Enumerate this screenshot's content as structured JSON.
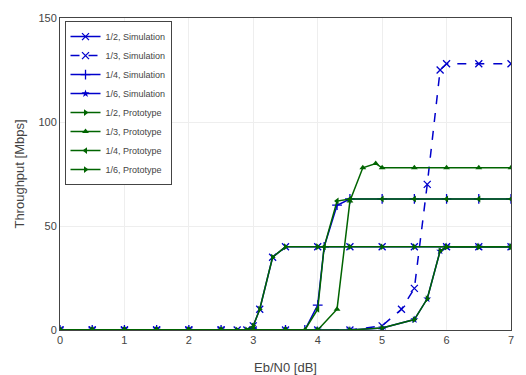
{
  "chart_data": {
    "type": "line",
    "xlabel": "Eb/N0 [dB]",
    "ylabel": "Throughput [Mbps]",
    "xlim": [
      0,
      7
    ],
    "ylim": [
      0,
      150
    ],
    "xticks": [
      0,
      1,
      2,
      3,
      4,
      5,
      6,
      7
    ],
    "yticks": [
      0,
      50,
      100,
      150
    ],
    "grid": true,
    "legend": "upper left",
    "series": [
      {
        "name": "1/2, Simulation",
        "color": "#0000cc",
        "line_style": "solid",
        "marker": "x",
        "x": [
          0,
          0.5,
          1.0,
          1.5,
          2.0,
          2.5,
          2.75,
          2.9,
          3.0,
          3.1,
          3.3,
          3.5,
          4.0,
          4.5,
          5.0,
          5.5,
          6.0,
          6.5,
          7.0
        ],
        "values": [
          0,
          0,
          0,
          0,
          0,
          0,
          0,
          0,
          2,
          10,
          35,
          40,
          40,
          40,
          40,
          40,
          40,
          40,
          40
        ]
      },
      {
        "name": "1/3, Simulation",
        "color": "#0000cc",
        "line_style": "dashed",
        "marker": "x",
        "x": [
          0,
          0.5,
          1.0,
          1.5,
          2.0,
          2.5,
          3.0,
          3.5,
          4.0,
          4.5,
          5.0,
          5.3,
          5.5,
          5.7,
          5.9,
          6.0,
          6.5,
          7.0
        ],
        "values": [
          0,
          0,
          0,
          0,
          0,
          0,
          0,
          0,
          0,
          0,
          2,
          10,
          20,
          70,
          125,
          128,
          128,
          128
        ]
      },
      {
        "name": "1/4, Simulation",
        "color": "#0000cc",
        "line_style": "solid",
        "marker": "plus",
        "x": [
          0,
          0.5,
          1.0,
          1.5,
          2.0,
          2.5,
          3.0,
          3.5,
          3.8,
          4.0,
          4.1,
          4.3,
          4.5,
          5.0,
          5.5,
          6.0,
          6.5,
          7.0
        ],
        "values": [
          0,
          0,
          0,
          0,
          0,
          0,
          0,
          0,
          0,
          12,
          40,
          60,
          63,
          63,
          63,
          63,
          63,
          63
        ]
      },
      {
        "name": "1/6, Simulation",
        "color": "#0000cc",
        "line_style": "solid",
        "marker": "star",
        "x": [
          0,
          0.5,
          1.0,
          1.5,
          2.0,
          2.5,
          3.0,
          3.5,
          4.0,
          4.5,
          5.0,
          5.5,
          5.7,
          5.9,
          6.0,
          6.5,
          7.0
        ],
        "values": [
          0,
          0,
          0,
          0,
          0,
          0,
          0,
          0,
          0,
          0,
          1,
          5,
          15,
          38,
          40,
          40,
          40
        ]
      },
      {
        "name": "1/2, Prototype",
        "color": "#006400",
        "line_style": "solid",
        "marker": "triangle-right",
        "x": [
          0,
          0.5,
          1.0,
          1.5,
          2.0,
          2.5,
          2.75,
          2.9,
          3.0,
          3.1,
          3.3,
          3.5,
          4.0,
          4.5,
          5.0,
          5.5,
          6.0,
          6.5,
          7.0
        ],
        "values": [
          0,
          0,
          0,
          0,
          0,
          0,
          0,
          0,
          2,
          10,
          35,
          40,
          40,
          40,
          40,
          40,
          40,
          40,
          40
        ]
      },
      {
        "name": "1/3, Prototype",
        "color": "#006400",
        "line_style": "solid",
        "marker": "triangle-up",
        "x": [
          0,
          0.5,
          1.0,
          1.5,
          2.0,
          2.5,
          3.0,
          3.5,
          4.0,
          4.3,
          4.5,
          4.7,
          4.9,
          5.0,
          5.5,
          6.0,
          6.5,
          7.0
        ],
        "values": [
          0,
          0,
          0,
          0,
          0,
          0,
          0,
          0,
          0,
          10,
          62,
          78,
          80,
          78,
          78,
          78,
          78,
          78
        ]
      },
      {
        "name": "1/4, Prototype",
        "color": "#006400",
        "line_style": "solid",
        "marker": "triangle-left",
        "x": [
          0,
          0.5,
          1.0,
          1.5,
          2.0,
          2.5,
          3.0,
          3.5,
          3.8,
          4.0,
          4.1,
          4.3,
          4.5,
          5.0,
          5.5,
          6.0,
          6.5,
          7.0
        ],
        "values": [
          0,
          0,
          0,
          0,
          0,
          0,
          0,
          0,
          0,
          10,
          40,
          62,
          63,
          63,
          63,
          63,
          63,
          63
        ]
      },
      {
        "name": "1/6, Prototype",
        "color": "#006400",
        "line_style": "solid",
        "marker": "triangle-right",
        "x": [
          0,
          0.5,
          1.0,
          1.5,
          2.0,
          2.5,
          3.0,
          3.5,
          4.0,
          4.5,
          5.0,
          5.5,
          5.7,
          5.9,
          6.0,
          6.5,
          7.0
        ],
        "values": [
          0,
          0,
          0,
          0,
          0,
          0,
          0,
          0,
          0,
          0,
          1,
          5,
          15,
          38,
          40,
          40,
          40
        ]
      }
    ]
  }
}
